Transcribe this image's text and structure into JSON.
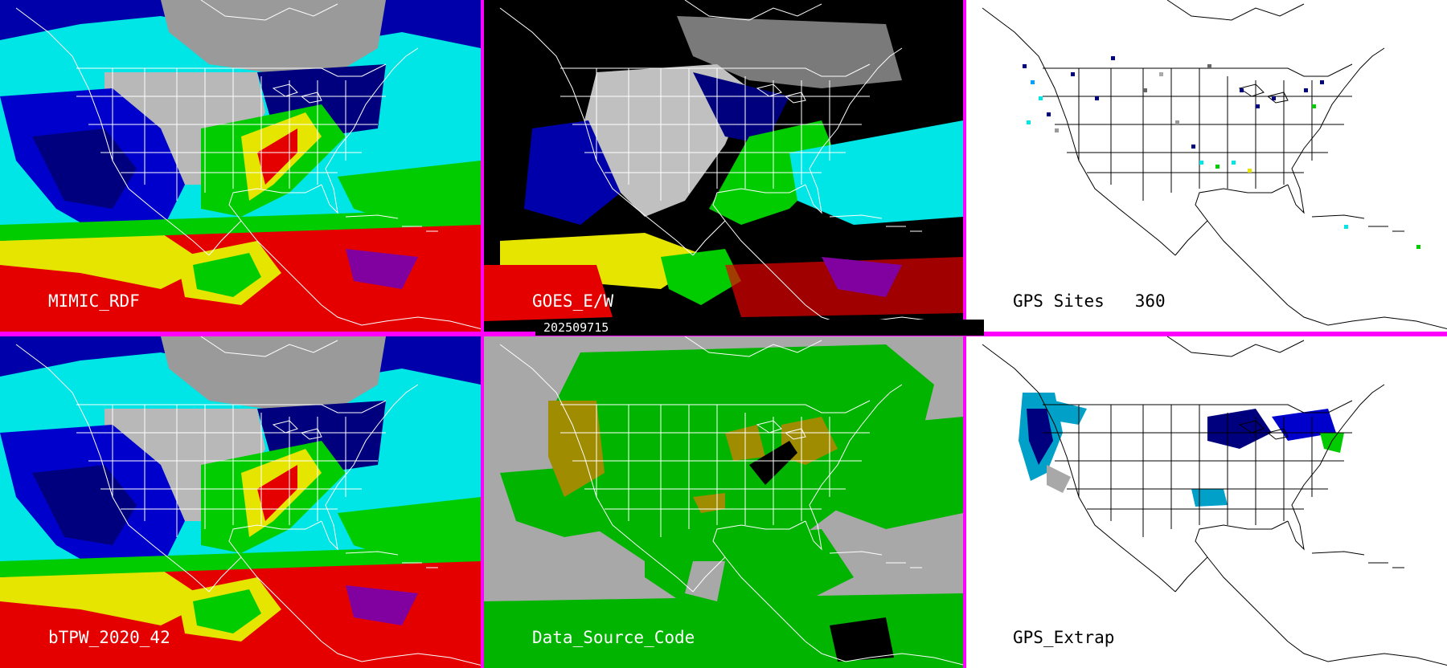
{
  "panels": {
    "mimic_rdf": {
      "label": "MIMIC_RDF"
    },
    "goes_ew": {
      "label": "GOES_E/W",
      "timestamp": "202509715"
    },
    "gps_sites": {
      "label": "GPS Sites",
      "count": "360"
    },
    "btpw": {
      "label": "bTPW_2020_42"
    },
    "data_source_code": {
      "label": "Data_Source_Code"
    },
    "gps_extrap": {
      "label": "GPS_Extrap"
    }
  },
  "colors": {
    "divider": "#ff00ff",
    "tpw_cyan": "#00e5e5",
    "tpw_navy": "#00007f",
    "tpw_blue": "#0000cc",
    "tpw_green": "#00cc00",
    "tpw_yellow": "#e5e500",
    "tpw_red": "#e50000",
    "tpw_purple": "#8000a0",
    "dsc_green": "#00b400",
    "dsc_gray": "#a8a8a8",
    "dsc_olive": "#a08c00"
  }
}
